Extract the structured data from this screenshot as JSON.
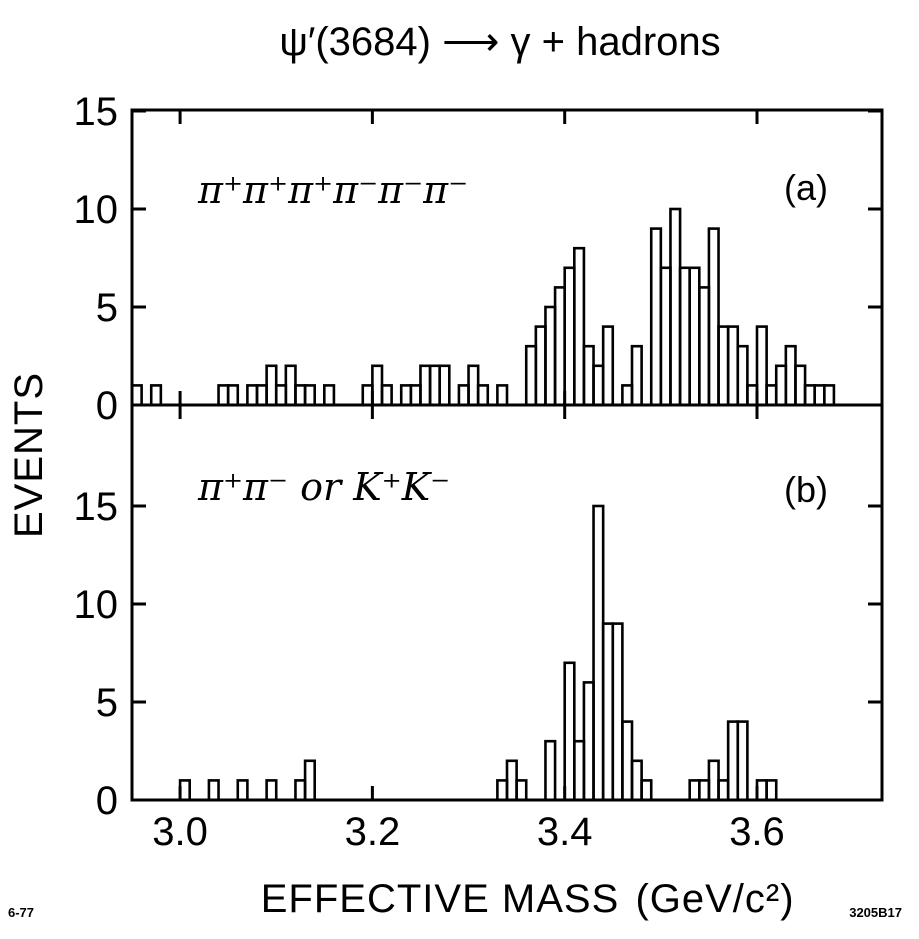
{
  "title": "ψ′(3684) ⟶ γ + hadrons",
  "ylabel": "EVENTS",
  "xlabel": "EFFECTIVE MASS",
  "xunit": "(GeV/c²)",
  "date_code": "6-77",
  "figure_code": "3205B17",
  "chart_data": [
    {
      "type": "bar",
      "panel": "(a)",
      "process": "π⁺π⁺π⁺π⁻π⁻π⁻",
      "xlim": [
        2.95,
        3.73
      ],
      "ylim": [
        0,
        15
      ],
      "yticks": [
        0,
        5,
        10,
        15
      ],
      "ytick_labels": [
        "0",
        "5",
        "10",
        "15"
      ],
      "xticks": [
        3.0,
        3.2,
        3.4,
        3.6
      ],
      "bin_width": 0.01,
      "bins": [
        [
          2.95,
          1
        ],
        [
          2.97,
          1
        ],
        [
          3.04,
          1
        ],
        [
          3.05,
          1
        ],
        [
          3.07,
          1
        ],
        [
          3.08,
          1
        ],
        [
          3.09,
          2
        ],
        [
          3.1,
          1
        ],
        [
          3.11,
          2
        ],
        [
          3.12,
          1
        ],
        [
          3.13,
          1
        ],
        [
          3.15,
          1
        ],
        [
          3.19,
          1
        ],
        [
          3.2,
          2
        ],
        [
          3.21,
          1
        ],
        [
          3.23,
          1
        ],
        [
          3.24,
          1
        ],
        [
          3.25,
          2
        ],
        [
          3.26,
          2
        ],
        [
          3.27,
          2
        ],
        [
          3.29,
          1
        ],
        [
          3.3,
          2
        ],
        [
          3.31,
          1
        ],
        [
          3.33,
          1
        ],
        [
          3.36,
          3
        ],
        [
          3.37,
          4
        ],
        [
          3.38,
          5
        ],
        [
          3.39,
          6
        ],
        [
          3.4,
          7
        ],
        [
          3.41,
          8
        ],
        [
          3.42,
          3
        ],
        [
          3.43,
          2
        ],
        [
          3.44,
          4
        ],
        [
          3.46,
          1
        ],
        [
          3.47,
          3
        ],
        [
          3.49,
          9
        ],
        [
          3.5,
          7
        ],
        [
          3.51,
          10
        ],
        [
          3.52,
          7
        ],
        [
          3.53,
          7
        ],
        [
          3.54,
          6
        ],
        [
          3.55,
          9
        ],
        [
          3.56,
          4
        ],
        [
          3.57,
          4
        ],
        [
          3.58,
          3
        ],
        [
          3.59,
          1
        ],
        [
          3.6,
          4
        ],
        [
          3.61,
          1
        ],
        [
          3.62,
          2
        ],
        [
          3.63,
          3
        ],
        [
          3.64,
          2
        ],
        [
          3.65,
          1
        ],
        [
          3.66,
          1
        ],
        [
          3.67,
          1
        ]
      ]
    },
    {
      "type": "bar",
      "panel": "(b)",
      "process": "π⁺π⁻ or K⁺K⁻",
      "xlim": [
        2.95,
        3.73
      ],
      "ylim": [
        0,
        19
      ],
      "yticks": [
        0,
        5,
        10,
        15
      ],
      "ytick_labels": [
        "0",
        "5",
        "10",
        "15"
      ],
      "xticks": [
        3.0,
        3.2,
        3.4,
        3.6
      ],
      "xtick_labels": [
        "3.0",
        "3.2",
        "3.4",
        "3.6"
      ],
      "bin_width": 0.01,
      "bins": [
        [
          3.0,
          1
        ],
        [
          3.03,
          1
        ],
        [
          3.06,
          1
        ],
        [
          3.09,
          1
        ],
        [
          3.12,
          1
        ],
        [
          3.13,
          2
        ],
        [
          3.33,
          1
        ],
        [
          3.34,
          2
        ],
        [
          3.35,
          1
        ],
        [
          3.38,
          3
        ],
        [
          3.4,
          7
        ],
        [
          3.41,
          3
        ],
        [
          3.42,
          6
        ],
        [
          3.43,
          15
        ],
        [
          3.44,
          9
        ],
        [
          3.45,
          9
        ],
        [
          3.46,
          4
        ],
        [
          3.47,
          2
        ],
        [
          3.48,
          1
        ],
        [
          3.53,
          1
        ],
        [
          3.54,
          1
        ],
        [
          3.55,
          2
        ],
        [
          3.56,
          1
        ],
        [
          3.57,
          4
        ],
        [
          3.58,
          4
        ],
        [
          3.6,
          1
        ],
        [
          3.61,
          1
        ]
      ]
    }
  ]
}
